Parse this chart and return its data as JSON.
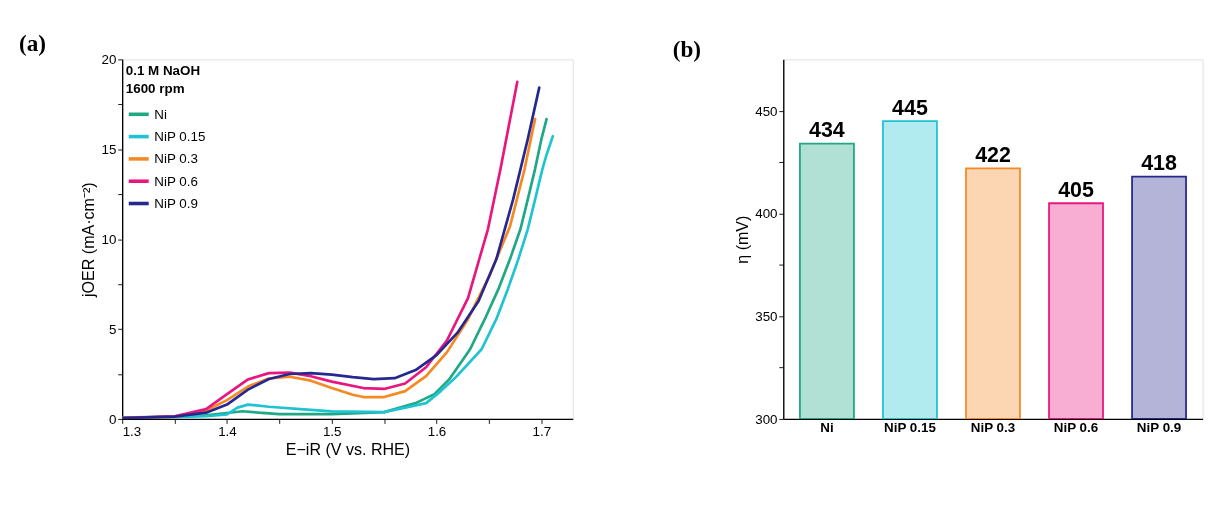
{
  "chart_data": [
    {
      "type": "line",
      "title": "(a)",
      "xlabel": "E−iR (V vs. RHE)",
      "ylabel": "jOER (mA·cm⁻²)",
      "annotations": [
        "0.1 M NaOH",
        "1600 rpm"
      ],
      "xlim": [
        1.3,
        1.73
      ],
      "ylim": [
        0,
        20
      ],
      "xticks": [
        1.3,
        {
          "value": 1.35,
          "label": null
        },
        1.4,
        {
          "value": 1.45,
          "label": null
        },
        1.5,
        {
          "value": 1.55,
          "label": null
        },
        1.6,
        {
          "value": 1.65,
          "label": null
        },
        1.7
      ],
      "yticks": [
        0,
        {
          "value": 2.5,
          "label": null
        },
        5,
        {
          "value": 7.5,
          "label": null
        },
        10,
        {
          "value": 12.5,
          "label": null
        },
        15,
        {
          "value": 17.5,
          "label": null
        },
        20
      ],
      "legend": "top left",
      "grid": false,
      "line_style": "solid",
      "marker": "none",
      "series": [
        {
          "name": "Ni",
          "color": "#1fa883",
          "x": [
            1.3,
            1.35,
            1.38,
            1.4,
            1.415,
            1.43,
            1.45,
            1.5,
            1.55,
            1.58,
            1.598,
            1.612,
            1.632,
            1.646,
            1.659,
            1.67,
            1.68,
            1.687,
            1.694,
            1.7,
            1.705
          ],
          "values": [
            0.08,
            0.13,
            0.2,
            0.33,
            0.43,
            0.35,
            0.27,
            0.27,
            0.38,
            0.88,
            1.38,
            2.2,
            3.88,
            5.55,
            7.22,
            8.88,
            10.55,
            12.2,
            13.9,
            15.55,
            16.68
          ]
        },
        {
          "name": "NiP 0.15",
          "color": "#1fc3d2",
          "x": [
            1.3,
            1.35,
            1.38,
            1.4,
            1.41,
            1.42,
            1.44,
            1.47,
            1.5,
            1.55,
            1.59,
            1.604,
            1.618,
            1.643,
            1.657,
            1.668,
            1.678,
            1.687,
            1.694,
            1.701,
            1.705,
            1.711
          ],
          "values": [
            0.05,
            0.1,
            0.15,
            0.25,
            0.63,
            0.8,
            0.68,
            0.55,
            0.42,
            0.38,
            0.88,
            1.55,
            2.3,
            3.88,
            5.55,
            7.22,
            8.88,
            10.55,
            12.2,
            13.9,
            14.7,
            15.73
          ]
        },
        {
          "name": "NiP 0.3",
          "color": "#f58a24",
          "x": [
            1.3,
            1.35,
            1.38,
            1.4,
            1.42,
            1.44,
            1.46,
            1.48,
            1.5,
            1.52,
            1.53,
            1.55,
            1.57,
            1.59,
            1.61,
            1.63,
            1.65,
            1.67,
            1.684,
            1.694
          ],
          "values": [
            0.05,
            0.12,
            0.47,
            1.05,
            1.8,
            2.25,
            2.35,
            2.13,
            1.72,
            1.35,
            1.22,
            1.22,
            1.55,
            2.38,
            3.72,
            5.55,
            7.9,
            10.7,
            13.9,
            16.68
          ]
        },
        {
          "name": "NiP 0.6",
          "color": "#e8177f",
          "x": [
            1.3,
            1.35,
            1.38,
            1.4,
            1.42,
            1.44,
            1.46,
            1.48,
            1.5,
            1.53,
            1.55,
            1.57,
            1.59,
            1.61,
            1.63,
            1.649,
            1.661,
            1.677
          ],
          "values": [
            0.05,
            0.15,
            0.55,
            1.38,
            2.2,
            2.55,
            2.58,
            2.38,
            2.08,
            1.72,
            1.67,
            1.97,
            2.88,
            4.38,
            6.72,
            10.55,
            13.9,
            18.75
          ]
        },
        {
          "name": "NiP 0.9",
          "color": "#27288f",
          "x": [
            1.3,
            1.35,
            1.38,
            1.4,
            1.42,
            1.44,
            1.46,
            1.48,
            1.5,
            1.52,
            1.54,
            1.56,
            1.58,
            1.6,
            1.62,
            1.64,
            1.657,
            1.673,
            1.687,
            1.698
          ],
          "values": [
            0.05,
            0.13,
            0.35,
            0.8,
            1.63,
            2.22,
            2.5,
            2.55,
            2.47,
            2.33,
            2.22,
            2.27,
            2.72,
            3.55,
            4.8,
            6.55,
            8.88,
            12.2,
            15.55,
            18.43
          ]
        }
      ]
    },
    {
      "type": "bar",
      "title": "(b)",
      "ylabel": "η (mV)",
      "categories": [
        "Ni",
        "NiP 0.15",
        "NiP 0.3",
        "NiP 0.6",
        "NiP 0.9"
      ],
      "values": [
        434,
        445,
        422,
        405,
        418
      ],
      "colors": [
        "#1fa883",
        "#1fc3d2",
        "#f58a24",
        "#e8177f",
        "#27288f"
      ],
      "ylim": [
        300,
        475
      ],
      "yticks": [
        300,
        {
          "value": 325,
          "label": null
        },
        350,
        {
          "value": 375,
          "label": null
        },
        400,
        {
          "value": 425,
          "label": null
        },
        450
      ],
      "data_labels": true,
      "grid": false
    }
  ]
}
